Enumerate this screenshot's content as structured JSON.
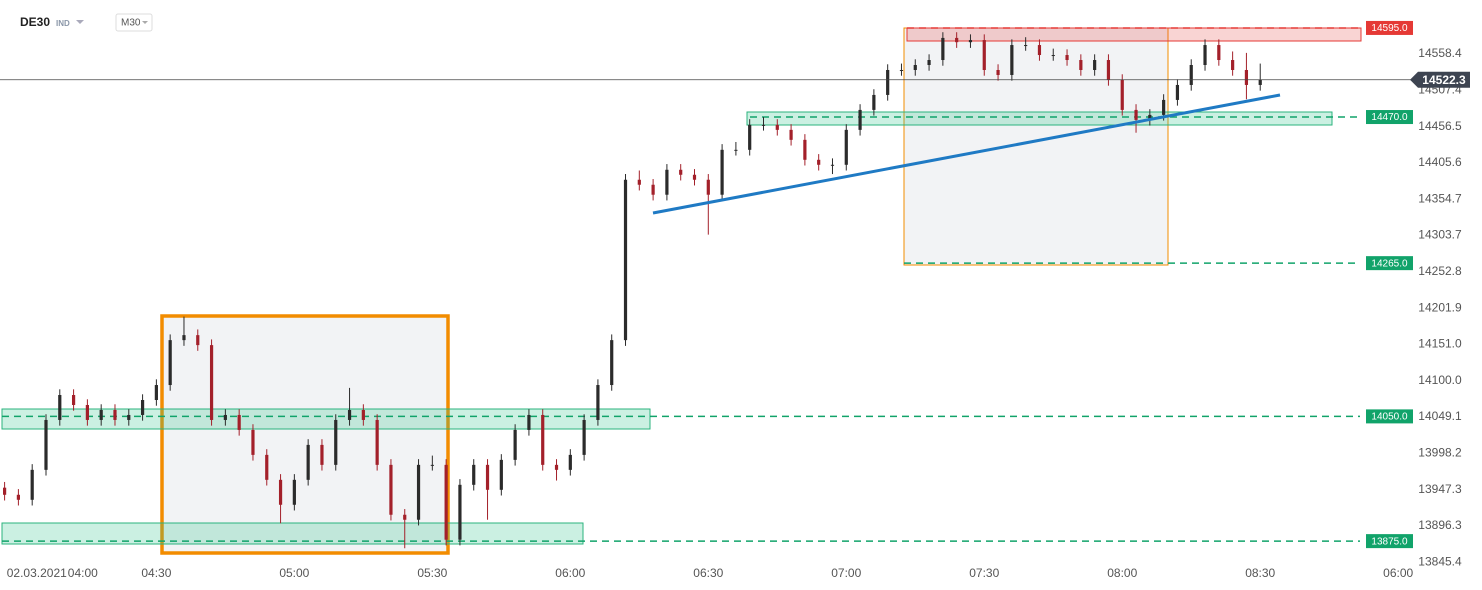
{
  "header": {
    "symbol": "DE30",
    "market": "IND",
    "timeframe": "M30"
  },
  "chart_data": {
    "type": "candlestick",
    "x": [
      0,
      3,
      6,
      9,
      12,
      15,
      18,
      21,
      24,
      27,
      30,
      33,
      36,
      39,
      42,
      45,
      48,
      51,
      54,
      57,
      60,
      63,
      66,
      69,
      72,
      75,
      78,
      81,
      84,
      87,
      90,
      93,
      96,
      99,
      102,
      105,
      108,
      111,
      114,
      117,
      120,
      123,
      126,
      129,
      132,
      135,
      138,
      141,
      144,
      147,
      150,
      153,
      156,
      159,
      162,
      165,
      168,
      171,
      174,
      177,
      180,
      183,
      186,
      189,
      192,
      195,
      198,
      201,
      204,
      207,
      210,
      213,
      216,
      219,
      222,
      225,
      228,
      231,
      234,
      237,
      240,
      243,
      246,
      249,
      252,
      255,
      258,
      261,
      264,
      267,
      270,
      273
    ],
    "open": [
      13950,
      13940,
      13933,
      13975,
      14045,
      14080,
      14066,
      14045,
      14059,
      14045,
      14052,
      14073,
      14094,
      14157,
      14164,
      14150,
      14045,
      14052,
      14031,
      13996,
      13961,
      13926,
      13961,
      14010,
      13982,
      14045,
      14059,
      14045,
      13982,
      13912,
      13905,
      13982,
      13982,
      13877,
      13954,
      13982,
      13947,
      13989,
      14031,
      14052,
      13982,
      13975,
      13996,
      14045,
      14094,
      14157,
      14382,
      14375,
      14361,
      14396,
      14389,
      14382,
      14361,
      14424,
      14424,
      14459,
      14459,
      14452,
      14438,
      14410,
      14403,
      14403,
      14452,
      14480,
      14501,
      14536,
      14536,
      14543,
      14550,
      14581,
      14575,
      14578,
      14536,
      14529,
      14571,
      14571,
      14557,
      14557,
      14550,
      14536,
      14550,
      14522,
      14480,
      14466,
      14473,
      14494,
      14515,
      14543,
      14571,
      14550,
      14536,
      14515
    ],
    "high": [
      13958,
      13948,
      13983,
      14053,
      14088,
      14088,
      14074,
      14067,
      14067,
      14060,
      14081,
      14102,
      14165,
      14190,
      14172,
      14158,
      14060,
      14060,
      14039,
      14004,
      13969,
      13969,
      14018,
      14018,
      14053,
      14090,
      14067,
      14053,
      13990,
      13920,
      13990,
      13995,
      13990,
      13962,
      13990,
      13990,
      13997,
      14039,
      14060,
      14060,
      13990,
      14004,
      14053,
      14102,
      14165,
      14390,
      14395,
      14383,
      14404,
      14404,
      14397,
      14390,
      14432,
      14435,
      14467,
      14470,
      14467,
      14460,
      14446,
      14418,
      14412,
      14460,
      14488,
      14509,
      14544,
      14545,
      14551,
      14558,
      14589,
      14589,
      14586,
      14586,
      14544,
      14579,
      14582,
      14579,
      14566,
      14565,
      14558,
      14558,
      14558,
      14530,
      14488,
      14481,
      14502,
      14523,
      14551,
      14579,
      14579,
      14562,
      14560,
      14545
    ],
    "low": [
      13932,
      13925,
      13925,
      13967,
      14037,
      14058,
      14037,
      14037,
      14037,
      14037,
      14044,
      14065,
      14086,
      14149,
      14142,
      14037,
      14037,
      14023,
      13988,
      13953,
      13900,
      13918,
      13953,
      13974,
      13974,
      14037,
      14037,
      13974,
      13904,
      13865,
      13897,
      13974,
      13869,
      13869,
      13946,
      13905,
      13939,
      13981,
      14023,
      13974,
      13960,
      13967,
      13988,
      14037,
      14086,
      14149,
      14367,
      14353,
      14353,
      14381,
      14374,
      14305,
      14353,
      14416,
      14416,
      14451,
      14444,
      14430,
      14402,
      14395,
      14390,
      14395,
      14444,
      14472,
      14493,
      14528,
      14528,
      14535,
      14542,
      14567,
      14567,
      14528,
      14521,
      14521,
      14563,
      14549,
      14549,
      14542,
      14528,
      14528,
      14514,
      14472,
      14448,
      14458,
      14465,
      14486,
      14507,
      14535,
      14542,
      14528,
      14495,
      14507
    ],
    "close": [
      13940,
      13933,
      13975,
      14045,
      14080,
      14066,
      14045,
      14059,
      14045,
      14052,
      14073,
      14094,
      14157,
      14164,
      14150,
      14045,
      14052,
      14031,
      13996,
      13961,
      13926,
      13961,
      14010,
      13982,
      14045,
      14059,
      14045,
      13982,
      13912,
      13905,
      13982,
      13982,
      13877,
      13954,
      13982,
      13947,
      13989,
      14031,
      14052,
      13982,
      13975,
      13996,
      14045,
      14094,
      14157,
      14382,
      14375,
      14361,
      14396,
      14389,
      14382,
      14361,
      14424,
      14424,
      14459,
      14459,
      14452,
      14438,
      14410,
      14403,
      14403,
      14452,
      14480,
      14501,
      14536,
      14536,
      14543,
      14550,
      14581,
      14575,
      14578,
      14536,
      14529,
      14571,
      14571,
      14557,
      14557,
      14550,
      14536,
      14550,
      14522,
      14480,
      14466,
      14473,
      14494,
      14515,
      14543,
      14571,
      14550,
      14536,
      14515,
      14522.3
    ],
    "up_color": "#2b2b2b",
    "down_color": "#a3202a",
    "xlim": [
      -1,
      306
    ],
    "xticks": [
      {
        "value": 7,
        "label": "02.03.2021"
      },
      {
        "value": 17,
        "label": "04:00"
      },
      {
        "value": 33,
        "label": "04:30"
      },
      {
        "value": 63,
        "label": "05:00"
      },
      {
        "value": 93,
        "label": "05:30"
      },
      {
        "value": 123,
        "label": "06:00"
      },
      {
        "value": 153,
        "label": "06:30"
      },
      {
        "value": 183,
        "label": "07:00"
      },
      {
        "value": 213,
        "label": "07:30"
      },
      {
        "value": 243,
        "label": "08:00"
      },
      {
        "value": 273,
        "label": "08:30"
      },
      {
        "value": 303,
        "label": "06:00"
      }
    ],
    "ylim": [
      13841.5,
      14634.2
    ],
    "yticks": [
      14558.4,
      14507.4,
      14456.5,
      14405.6,
      14354.7,
      14303.7,
      14252.8,
      14201.9,
      {
        "value": 14151,
        "label": "14151.0"
      },
      {
        "value": 14100,
        "label": "14100.0"
      },
      14049.1,
      13998.2,
      13947.3,
      13896.3,
      13845.4
    ],
    "grid": false,
    "levels": [
      {
        "value": 14595,
        "label": "14595.0",
        "color": "#e53935"
      },
      {
        "value": 14470,
        "label": "14470.0",
        "color": "#11a36a"
      },
      {
        "value": 14265,
        "label": "14265.0",
        "color": "#11a36a"
      },
      {
        "value": 14050,
        "label": "14050.0",
        "color": "#11a36a"
      },
      {
        "value": 13875,
        "label": "13875.0",
        "color": "#11a36a"
      }
    ],
    "last_price": 14522.3
  }
}
